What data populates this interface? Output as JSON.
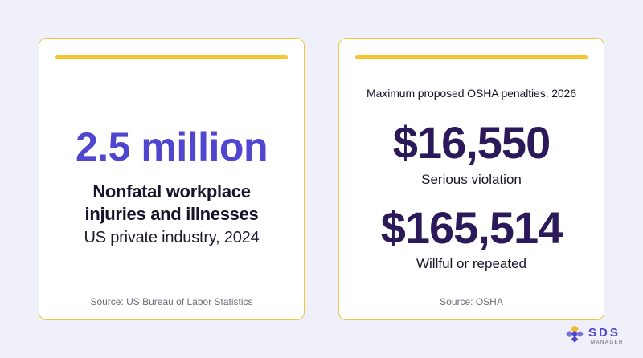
{
  "left_card": {
    "stat": "2.5 million",
    "label_line1": "Nonfatal workplace",
    "label_line2": "injuries and illnesses",
    "subtitle": "US private industry, 2024",
    "source": "Source: US Bureau of Labor Statistics"
  },
  "right_card": {
    "heading": "Maximum proposed OSHA penalties, 2026",
    "penalties": [
      {
        "amount": "$16,550",
        "label": "Serious violation"
      },
      {
        "amount": "$165,514",
        "label": "Willful or repeated"
      }
    ],
    "source": "Source: OSHA"
  },
  "logo": {
    "name": "SDS",
    "sub": "MANAGER",
    "icon": "diamond-grid-icon"
  },
  "colors": {
    "background": "#eff0fa",
    "accent": "#f4c72f",
    "stat": "#5046cf",
    "amount": "#2c1959"
  }
}
